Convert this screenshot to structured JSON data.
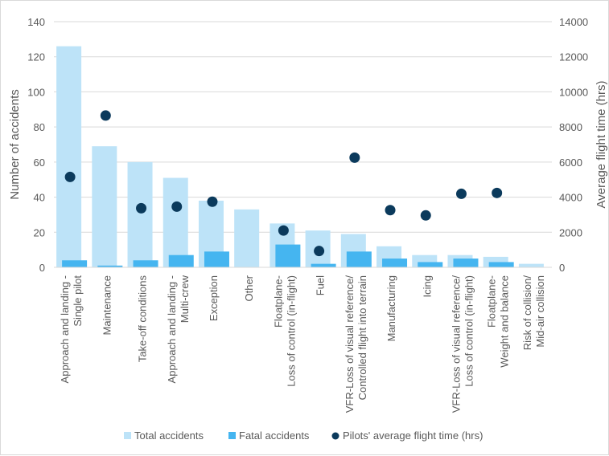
{
  "chart_data": {
    "type": "bar",
    "title": "",
    "categories": [
      [
        "Approach and landing -",
        "Single pilot"
      ],
      [
        "Maintenance"
      ],
      [
        "Take-off conditions"
      ],
      [
        "Approach and landing -",
        "Multi-crew"
      ],
      [
        "Exception"
      ],
      [
        "Other"
      ],
      [
        "Floatplane-",
        "Loss of control (in-flight)"
      ],
      [
        "Fuel"
      ],
      [
        "VFR-Loss of visual reference/",
        "Controlled flight into terrain"
      ],
      [
        "Manufacturing"
      ],
      [
        "Icing"
      ],
      [
        "VFR-Loss of visual reference/",
        "Loss of control (in-flight)"
      ],
      [
        "Floatplane-",
        "Weight and balance"
      ],
      [
        "Risk of collision/",
        "Mid-air collision"
      ]
    ],
    "series": [
      {
        "name": "Total accidents",
        "type": "bar",
        "axis": "left",
        "color": "#BDE3F8",
        "values": [
          126,
          69,
          60,
          51,
          38,
          33,
          25,
          21,
          19,
          12,
          7,
          7,
          6,
          2
        ]
      },
      {
        "name": "Fatal accidents",
        "type": "bar",
        "axis": "left",
        "color": "#45B5F0",
        "values": [
          4,
          1,
          4,
          7,
          9,
          0,
          13,
          2,
          9,
          5,
          3,
          5,
          3,
          0
        ]
      },
      {
        "name": "Pilots' average flight time (hrs)",
        "type": "scatter",
        "axis": "right",
        "color": "#0B3A5C",
        "values": [
          5150,
          8650,
          3370,
          3460,
          3740,
          null,
          2100,
          930,
          6250,
          3260,
          2960,
          4190,
          4240,
          null
        ]
      }
    ],
    "ylabel": "Number of accidents",
    "ylim": [
      0,
      140
    ],
    "yticks": [
      "0",
      "20",
      "40",
      "60",
      "80",
      "100",
      "120",
      "140"
    ],
    "y2label": "Average flight time (hrs)",
    "y2lim": [
      0,
      14000
    ],
    "y2ticks": [
      "0",
      "2000",
      "4000",
      "6000",
      "8000",
      "10000",
      "12000",
      "14000"
    ],
    "grid": true,
    "legend": "bottom"
  }
}
